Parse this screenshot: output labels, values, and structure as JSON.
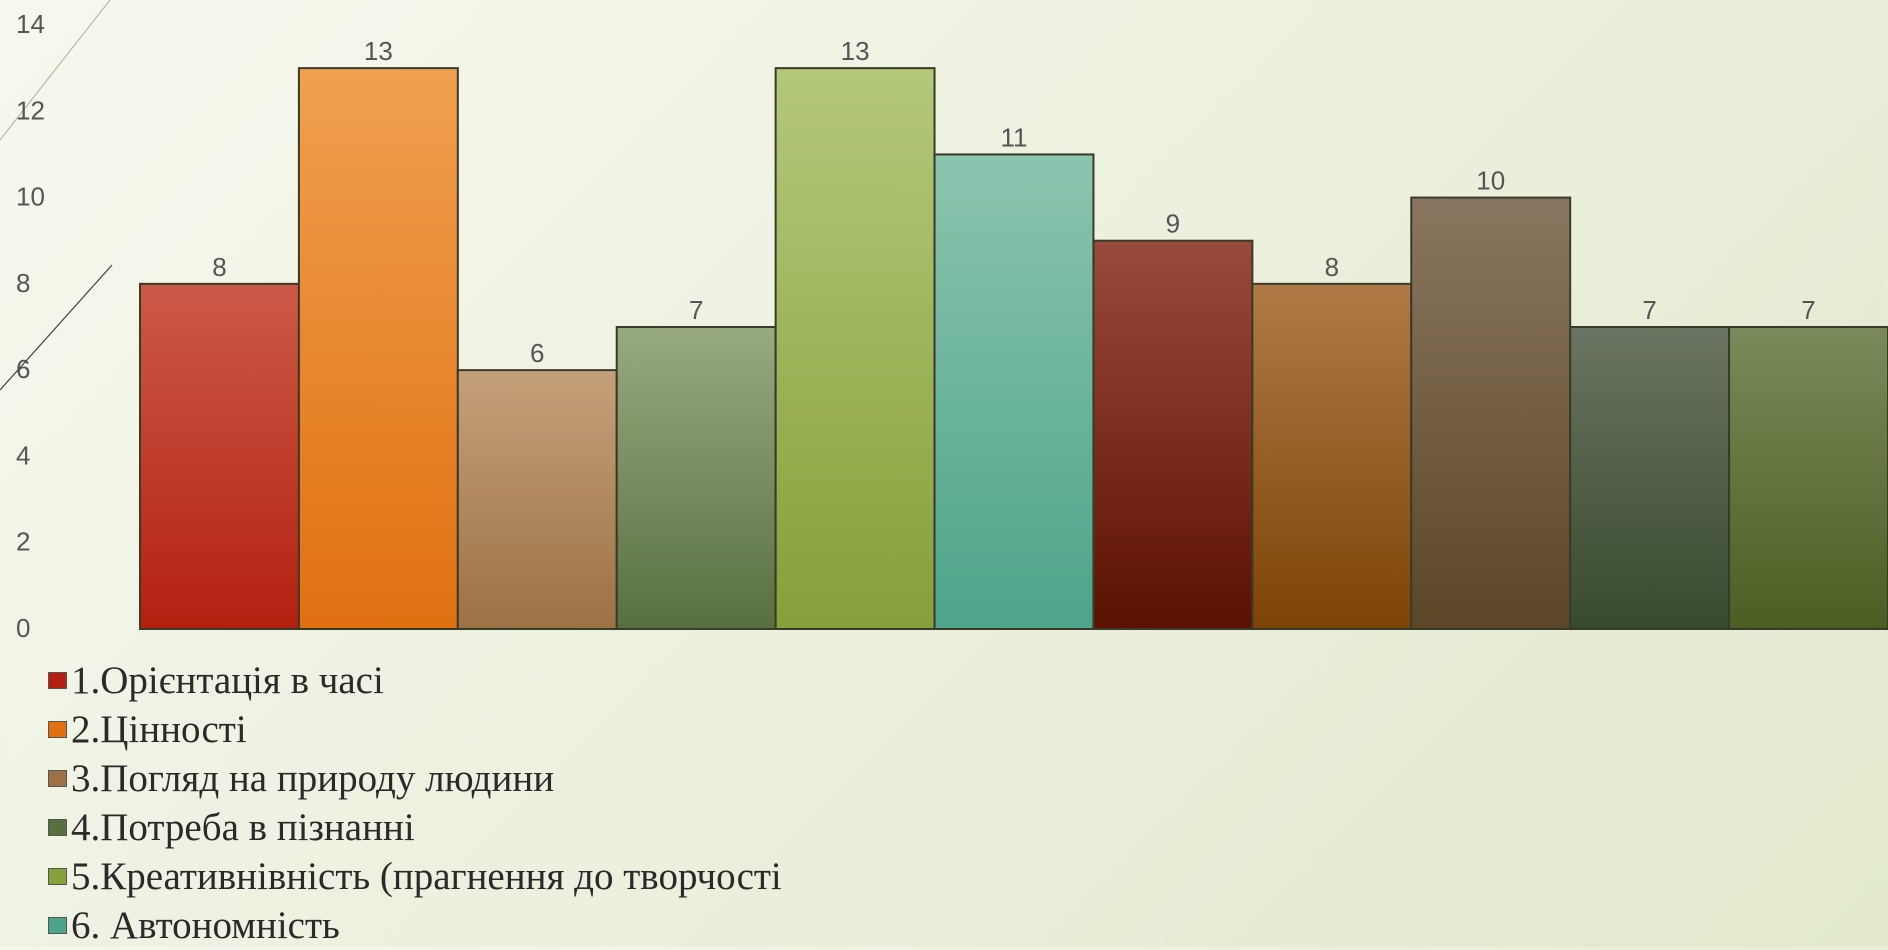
{
  "chart_data": {
    "type": "bar",
    "categories": [
      "1.Орієнтація в часі",
      "2.Цінності",
      "3.Погляд на природу людини",
      "4.Потреба в пізнанні",
      "5.Креативнівність (прагнення до творчості",
      "6. Автономність",
      "",
      "",
      "",
      "",
      ""
    ],
    "values": [
      8,
      13,
      6,
      7,
      13,
      11,
      9,
      8,
      10,
      7,
      7
    ],
    "data_labels": [
      "8",
      "13",
      "6",
      "7",
      "13",
      "11",
      "9",
      "8",
      "10",
      "7",
      "7"
    ],
    "ylim": [
      0,
      14
    ],
    "yticks": [
      "0",
      "2",
      "4",
      "6",
      "8",
      "10",
      "12",
      "14"
    ],
    "colors": [
      [
        "#cc5a48",
        "#b32010"
      ],
      [
        "#f0a050",
        "#e07010"
      ],
      [
        "#c4a07a",
        "#9c7244"
      ],
      [
        "#98aa80",
        "#587040"
      ],
      [
        "#b4c87a",
        "#86a03a"
      ],
      [
        "#8cc4ae",
        "#4ca48a"
      ],
      [
        "#9a4a3c",
        "#5c1000"
      ],
      [
        "#b07a48",
        "#7c4404"
      ],
      [
        "#8a7660",
        "#5c4628"
      ],
      [
        "#6a7462",
        "#384a2c"
      ],
      [
        "#7a8a5a",
        "#4c5e22"
      ]
    ],
    "grid": false,
    "legend_position": "bottom-left"
  },
  "legend": {
    "items": [
      {
        "label": "1.Орієнтація в часі",
        "color": "#b32010"
      },
      {
        "label": "2.Цінності",
        "color": "#e07010"
      },
      {
        "label": "3.Погляд на природу людини",
        "color": "#9c7244"
      },
      {
        "label": "4.Потреба в пізнанні",
        "color": "#587040"
      },
      {
        "label": "5.Креативнівність (прагнення до творчості",
        "color": "#86a03a"
      },
      {
        "label": "6. Автономність",
        "color": "#4ca48a"
      }
    ]
  }
}
